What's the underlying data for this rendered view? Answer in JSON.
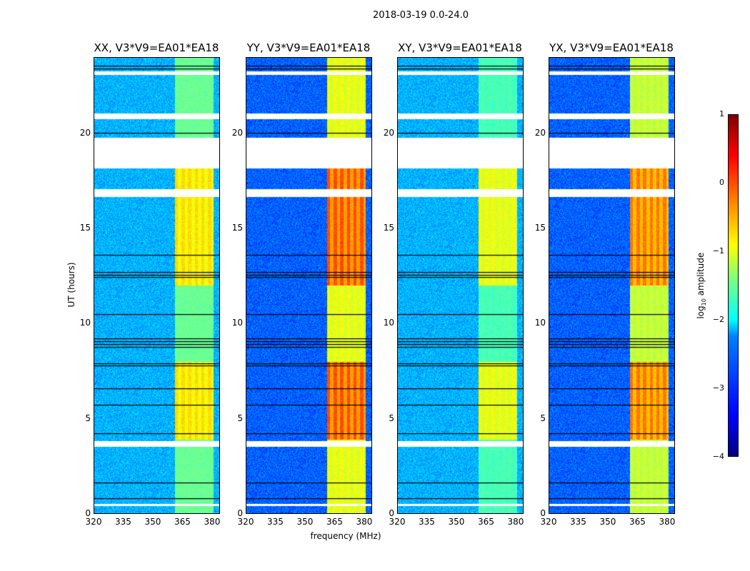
{
  "chart_data": {
    "type": "heatmap",
    "title": "2018-03-19 0.0-24.0",
    "xlabel": "frequency (MHz)",
    "ylabel": "UT (hours)",
    "xlim": [
      320,
      384
    ],
    "ylim": [
      0,
      24
    ],
    "xticks": [
      "320",
      "335",
      "350",
      "365",
      "380"
    ],
    "yticks": [
      "0",
      "5",
      "10",
      "15",
      "20"
    ],
    "colorbar": {
      "label": "log10 amplitude",
      "range": [
        -4,
        1
      ],
      "ticks": [
        "1",
        "0",
        "−1",
        "−2",
        "−3",
        "−4"
      ],
      "colormap": "jet"
    },
    "flagged_hours": [
      [
        23.1,
        23.3
      ],
      [
        20.8,
        21.1
      ],
      [
        18.2,
        19.8
      ],
      [
        16.7,
        17.1
      ],
      [
        3.5,
        3.8
      ],
      [
        0.4,
        0.5
      ]
    ],
    "rfi_band_mhz": [
      361,
      381
    ],
    "panels": [
      {
        "title": "XX, V3*V9=EA01*EA18",
        "baseline": -2.5,
        "rfi_peak": -0.7
      },
      {
        "title": "YY, V3*V9=EA01*EA18",
        "baseline": -2.9,
        "rfi_peak": 0.0
      },
      {
        "title": "XY, V3*V9=EA01*EA18",
        "baseline": -2.5,
        "rfi_peak": -0.9
      },
      {
        "title": "YX, V3*V9=EA01*EA18",
        "baseline": -2.9,
        "rfi_peak": -0.2
      }
    ]
  }
}
